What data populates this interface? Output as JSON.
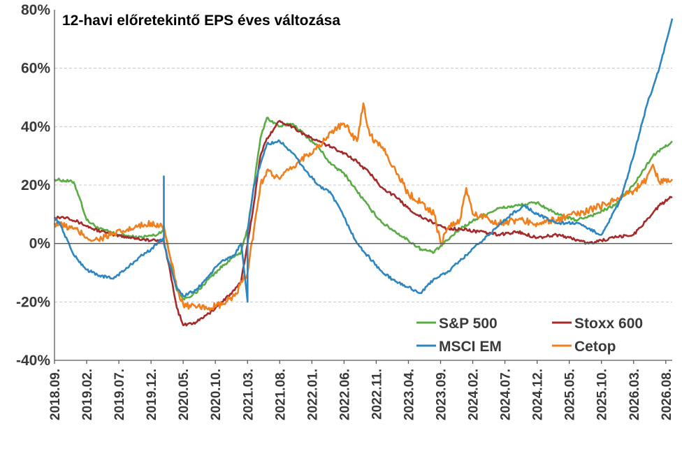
{
  "chart_data": {
    "type": "line",
    "title": "12-havi előretekintő EPS éves változása",
    "xlabel": "",
    "ylabel": "",
    "ylim": [
      -0.4,
      0.8
    ],
    "y_ticks": [
      "80%",
      "60%",
      "40%",
      "20%",
      "0%",
      "-20%",
      "-40%"
    ],
    "y_tick_values": [
      0.8,
      0.6,
      0.4,
      0.2,
      0.0,
      -0.2,
      -0.4
    ],
    "x_range": [
      "2018.09",
      "2026.09"
    ],
    "x_ticks": [
      "2018.09.",
      "2019.02.",
      "2019.07.",
      "2019.12.",
      "2020.05.",
      "2020.10.",
      "2021.03.",
      "2021.08.",
      "2022.01.",
      "2022.06.",
      "2022.11.",
      "2023.04.",
      "2023.09.",
      "2024.02.",
      "2024.07.",
      "2024.12.",
      "2025.05.",
      "2025.10.",
      "2026.03.",
      "2026.08."
    ],
    "grid": "horizontal",
    "legend_position": "bottom-right",
    "series": [
      {
        "name": "S&P 500",
        "color": "#5aac44",
        "points": [
          [
            "2018.09",
            0.22
          ],
          [
            "2018.12",
            0.21
          ],
          [
            "2019.01",
            0.15
          ],
          [
            "2019.02",
            0.08
          ],
          [
            "2019.04",
            0.05
          ],
          [
            "2019.07",
            0.03
          ],
          [
            "2019.10",
            0.02
          ],
          [
            "2020.01",
            0.03
          ],
          [
            "2020.02",
            0.05
          ],
          [
            "2020.03",
            -0.05
          ],
          [
            "2020.04",
            -0.16
          ],
          [
            "2020.05",
            -0.19
          ],
          [
            "2020.07",
            -0.17
          ],
          [
            "2020.09",
            -0.12
          ],
          [
            "2020.12",
            -0.06
          ],
          [
            "2021.02",
            -0.03
          ],
          [
            "2021.03",
            0.05
          ],
          [
            "2021.04",
            0.2
          ],
          [
            "2021.05",
            0.36
          ],
          [
            "2021.06",
            0.43
          ],
          [
            "2021.08",
            0.4
          ],
          [
            "2021.10",
            0.41
          ],
          [
            "2021.12",
            0.37
          ],
          [
            "2022.02",
            0.33
          ],
          [
            "2022.04",
            0.27
          ],
          [
            "2022.06",
            0.24
          ],
          [
            "2022.08",
            0.18
          ],
          [
            "2022.10",
            0.12
          ],
          [
            "2022.12",
            0.07
          ],
          [
            "2023.02",
            0.04
          ],
          [
            "2023.04",
            0.01
          ],
          [
            "2023.06",
            -0.02
          ],
          [
            "2023.08",
            -0.03
          ],
          [
            "2023.10",
            0.01
          ],
          [
            "2023.12",
            0.05
          ],
          [
            "2024.03",
            0.09
          ],
          [
            "2024.06",
            0.12
          ],
          [
            "2024.09",
            0.13
          ],
          [
            "2024.12",
            0.14
          ],
          [
            "2025.03",
            0.1
          ],
          [
            "2025.06",
            0.08
          ],
          [
            "2025.09",
            0.1
          ],
          [
            "2025.12",
            0.13
          ],
          [
            "2026.03",
            0.2
          ],
          [
            "2026.06",
            0.3
          ],
          [
            "2026.09",
            0.35
          ]
        ]
      },
      {
        "name": "Stoxx 600",
        "color": "#a52a2a",
        "points": [
          [
            "2018.09",
            0.09
          ],
          [
            "2018.11",
            0.09
          ],
          [
            "2019.01",
            0.07
          ],
          [
            "2019.03",
            0.05
          ],
          [
            "2019.06",
            0.03
          ],
          [
            "2019.09",
            0.02
          ],
          [
            "2019.12",
            0.01
          ],
          [
            "2020.02",
            0.01
          ],
          [
            "2020.03",
            -0.1
          ],
          [
            "2020.04",
            -0.22
          ],
          [
            "2020.05",
            -0.28
          ],
          [
            "2020.07",
            -0.27
          ],
          [
            "2020.09",
            -0.24
          ],
          [
            "2020.11",
            -0.2
          ],
          [
            "2021.01",
            -0.16
          ],
          [
            "2021.02",
            -0.13
          ],
          [
            "2021.03",
            0.0
          ],
          [
            "2021.04",
            0.14
          ],
          [
            "2021.05",
            0.3
          ],
          [
            "2021.06",
            0.36
          ],
          [
            "2021.08",
            0.42
          ],
          [
            "2021.10",
            0.4
          ],
          [
            "2021.12",
            0.37
          ],
          [
            "2022.02",
            0.35
          ],
          [
            "2022.04",
            0.33
          ],
          [
            "2022.06",
            0.31
          ],
          [
            "2022.08",
            0.28
          ],
          [
            "2022.10",
            0.24
          ],
          [
            "2022.12",
            0.19
          ],
          [
            "2023.02",
            0.16
          ],
          [
            "2023.04",
            0.12
          ],
          [
            "2023.06",
            0.09
          ],
          [
            "2023.08",
            0.07
          ],
          [
            "2023.10",
            0.05
          ],
          [
            "2023.12",
            0.05
          ],
          [
            "2024.03",
            0.04
          ],
          [
            "2024.06",
            0.03
          ],
          [
            "2024.09",
            0.04
          ],
          [
            "2024.12",
            0.02
          ],
          [
            "2025.03",
            0.03
          ],
          [
            "2025.05",
            0.02
          ],
          [
            "2025.08",
            0.0
          ],
          [
            "2025.10",
            0.01
          ],
          [
            "2025.12",
            0.02
          ],
          [
            "2026.03",
            0.03
          ],
          [
            "2026.05",
            0.08
          ],
          [
            "2026.07",
            0.13
          ],
          [
            "2026.09",
            0.16
          ]
        ]
      },
      {
        "name": "MSCI EM",
        "color": "#2e86c1",
        "points": [
          [
            "2018.09",
            0.09
          ],
          [
            "2018.10",
            0.06
          ],
          [
            "2018.12",
            -0.04
          ],
          [
            "2019.02",
            -0.09
          ],
          [
            "2019.04",
            -0.11
          ],
          [
            "2019.06",
            -0.12
          ],
          [
            "2019.08",
            -0.09
          ],
          [
            "2019.10",
            -0.05
          ],
          [
            "2019.12",
            -0.02
          ],
          [
            "2020.01",
            0.0
          ],
          [
            "2020.02",
            0.02
          ],
          [
            "2020.02",
            0.23
          ],
          [
            "2020.02",
            0.0
          ],
          [
            "2020.03",
            -0.08
          ],
          [
            "2020.04",
            -0.15
          ],
          [
            "2020.05",
            -0.18
          ],
          [
            "2020.07",
            -0.16
          ],
          [
            "2020.09",
            -0.11
          ],
          [
            "2020.11",
            -0.06
          ],
          [
            "2021.01",
            -0.04
          ],
          [
            "2021.02",
            0.0
          ],
          [
            "2021.03",
            -0.2
          ],
          [
            "2021.03",
            0.04
          ],
          [
            "2021.04",
            0.2
          ],
          [
            "2021.06",
            0.34
          ],
          [
            "2021.08",
            0.35
          ],
          [
            "2021.10",
            0.31
          ],
          [
            "2021.12",
            0.25
          ],
          [
            "2022.02",
            0.2
          ],
          [
            "2022.04",
            0.17
          ],
          [
            "2022.06",
            0.09
          ],
          [
            "2022.08",
            0.0
          ],
          [
            "2022.10",
            -0.05
          ],
          [
            "2022.12",
            -0.1
          ],
          [
            "2023.02",
            -0.13
          ],
          [
            "2023.04",
            -0.15
          ],
          [
            "2023.06",
            -0.17
          ],
          [
            "2023.08",
            -0.12
          ],
          [
            "2023.10",
            -0.1
          ],
          [
            "2023.12",
            -0.06
          ],
          [
            "2024.03",
            0.0
          ],
          [
            "2024.06",
            0.06
          ],
          [
            "2024.08",
            0.1
          ],
          [
            "2024.10",
            0.13
          ],
          [
            "2024.12",
            0.1
          ],
          [
            "2025.03",
            0.07
          ],
          [
            "2025.06",
            0.07
          ],
          [
            "2025.09",
            0.04
          ],
          [
            "2025.10",
            0.03
          ],
          [
            "2026.01",
            0.15
          ],
          [
            "2026.03",
            0.3
          ],
          [
            "2026.05",
            0.47
          ],
          [
            "2026.07",
            0.6
          ],
          [
            "2026.09",
            0.77
          ]
        ]
      },
      {
        "name": "Cetop",
        "color": "#f07f1e",
        "points": [
          [
            "2018.09",
            0.07
          ],
          [
            "2018.12",
            0.05
          ],
          [
            "2019.03",
            0.01
          ],
          [
            "2019.06",
            0.03
          ],
          [
            "2019.09",
            0.05
          ],
          [
            "2019.12",
            0.07
          ],
          [
            "2020.02",
            0.06
          ],
          [
            "2020.03",
            -0.05
          ],
          [
            "2020.04",
            -0.15
          ],
          [
            "2020.05",
            -0.21
          ],
          [
            "2020.07",
            -0.22
          ],
          [
            "2020.09",
            -0.22
          ],
          [
            "2020.11",
            -0.21
          ],
          [
            "2021.01",
            -0.18
          ],
          [
            "2021.03",
            -0.1
          ],
          [
            "2021.04",
            0.05
          ],
          [
            "2021.05",
            0.2
          ],
          [
            "2021.06",
            0.25
          ],
          [
            "2021.08",
            0.22
          ],
          [
            "2021.10",
            0.26
          ],
          [
            "2021.12",
            0.3
          ],
          [
            "2022.02",
            0.33
          ],
          [
            "2022.04",
            0.38
          ],
          [
            "2022.06",
            0.41
          ],
          [
            "2022.08",
            0.35
          ],
          [
            "2022.09",
            0.48
          ],
          [
            "2022.10",
            0.37
          ],
          [
            "2022.12",
            0.33
          ],
          [
            "2023.02",
            0.25
          ],
          [
            "2023.04",
            0.17
          ],
          [
            "2023.06",
            0.14
          ],
          [
            "2023.08",
            0.1
          ],
          [
            "2023.09",
            0.0
          ],
          [
            "2023.10",
            0.05
          ],
          [
            "2023.12",
            0.08
          ],
          [
            "2024.01",
            0.19
          ],
          [
            "2024.02",
            0.1
          ],
          [
            "2024.04",
            0.09
          ],
          [
            "2024.06",
            0.07
          ],
          [
            "2024.09",
            0.08
          ],
          [
            "2024.12",
            0.07
          ],
          [
            "2025.03",
            0.08
          ],
          [
            "2025.06",
            0.1
          ],
          [
            "2025.09",
            0.12
          ],
          [
            "2025.12",
            0.15
          ],
          [
            "2026.03",
            0.18
          ],
          [
            "2026.05",
            0.22
          ],
          [
            "2026.06",
            0.27
          ],
          [
            "2026.07",
            0.21
          ],
          [
            "2026.09",
            0.22
          ]
        ]
      }
    ]
  }
}
